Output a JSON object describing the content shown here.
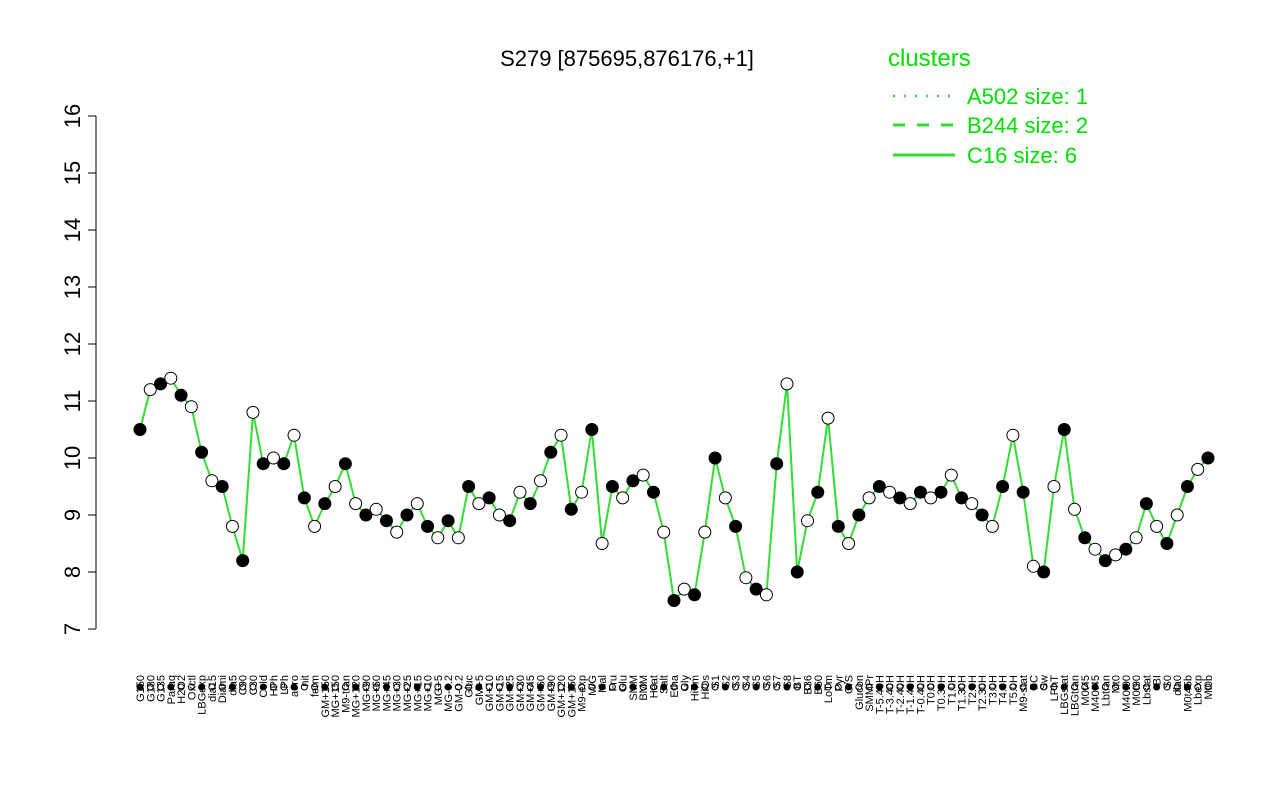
{
  "chart_data": {
    "type": "line",
    "title": "S279 [875695,876176,+1]",
    "xlabel": "",
    "ylabel": "",
    "ylim": [
      7,
      16
    ],
    "yticks": [
      7,
      8,
      9,
      10,
      11,
      12,
      13,
      14,
      15,
      16
    ],
    "grid": false,
    "legend": {
      "title": "clusters",
      "placement": "top-right",
      "entries": [
        {
          "label": "A502 size: 1",
          "style": "dotted"
        },
        {
          "label": "B244 size: 2",
          "style": "dashed"
        },
        {
          "label": "C16 size: 6",
          "style": "solid"
        }
      ]
    },
    "colors": {
      "line": "#33dd33",
      "legend": "#00e000",
      "point_stroke": "#000000"
    },
    "x_labels": [
      "G150",
      "G180",
      "G135",
      "Paraq",
      "H2O2",
      "Oxctl",
      "LBGexp",
      "dia15",
      "Diami",
      "dia5",
      "C90",
      "C30",
      "Cold",
      "HPh",
      "LPh",
      "aero",
      "nit",
      "ferm",
      "GM+150",
      "MG+150",
      "M9-tran",
      "MG+120",
      "MG+90",
      "MG+60",
      "MG+45",
      "MG+30",
      "MG+25",
      "MG+15",
      "MG+10",
      "MG+5",
      "MG-0.2",
      "GM-0.2",
      "Gluc",
      "GM+5",
      "GM+10",
      "GM+15",
      "GM+25",
      "GM+30",
      "GM+45",
      "GM+60",
      "GM+90",
      "GM+120",
      "GM+150",
      "M9-exp",
      "M/G",
      "Mal",
      "Fru",
      "Glu",
      "SMM",
      "BMM",
      "Heat",
      "Salt",
      "Etha",
      "Gly",
      "HiTm",
      "HiOs",
      "S1",
      "S2",
      "S3",
      "S4",
      "S5",
      "S6",
      "S7",
      "S8",
      "BT",
      "B36",
      "B60",
      "LoTm",
      "Pyr",
      "G/S",
      "Glucon",
      "SMMPr",
      "T-5.40H",
      "T-3.40H",
      "T-2.40H",
      "T-1.40H",
      "T-0.40H",
      "T0.0H",
      "T0.30H",
      "T1.0H",
      "T1.30H",
      "T2.0H",
      "T2.30H",
      "T3.0H",
      "T4.0H",
      "T5.0H",
      "M9-stat",
      "BC",
      "Sw",
      "LPhT",
      "LBGstat",
      "LBGtran",
      "M0t45",
      "M40t45",
      "Lbtran",
      "Mt0",
      "M40t90",
      "M0t90",
      "Lbstat",
      "BI",
      "S0",
      "dia0",
      "M0t45b",
      "Lbexp",
      "Mt0b"
    ],
    "x_label_note": "labels shown rotated under the x-axis",
    "series": [
      {
        "name": "C16 size: 6",
        "values": [
          10.5,
          11.2,
          11.3,
          11.4,
          11.1,
          10.9,
          10.1,
          9.6,
          9.5,
          8.8,
          8.2,
          10.8,
          9.9,
          10.0,
          9.9,
          10.4,
          9.3,
          8.8,
          9.2,
          9.5,
          9.9,
          9.2,
          9.0,
          9.1,
          8.9,
          8.7,
          9.0,
          9.2,
          8.8,
          8.6,
          8.9,
          8.6,
          9.5,
          9.2,
          9.3,
          9.0,
          8.9,
          9.4,
          9.2,
          9.6,
          10.1,
          10.4,
          9.1,
          9.4,
          10.5,
          8.5,
          9.5,
          9.3,
          9.6,
          9.7,
          9.4,
          8.7,
          7.5,
          7.7,
          7.6,
          8.7,
          10.0,
          9.3,
          8.8,
          7.9,
          7.7,
          7.6,
          9.9,
          11.3,
          8.0,
          8.9,
          9.4,
          10.7,
          8.8,
          8.5,
          9.0,
          9.3,
          9.5,
          9.4,
          9.3,
          9.2,
          9.4,
          9.3,
          9.4,
          9.7,
          9.3,
          9.2,
          9.0,
          8.8,
          9.5,
          10.4,
          9.4,
          8.1,
          8.0,
          9.5,
          10.5,
          9.1,
          8.6,
          8.4,
          8.2,
          8.3,
          8.4,
          8.6,
          9.2,
          8.8,
          8.5,
          9.0,
          9.5,
          9.8,
          10.0
        ]
      }
    ]
  }
}
